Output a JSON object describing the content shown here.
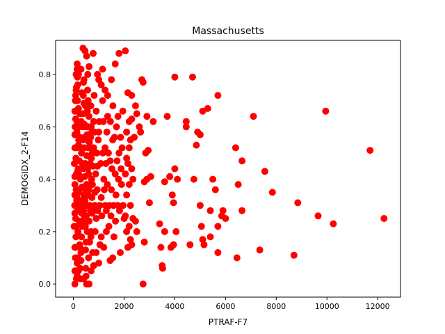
{
  "chart_data": {
    "type": "scatter",
    "title": "Massachusetts",
    "xlabel": "PTRAF-F7",
    "ylabel": "DEMOGIDX_2-F14",
    "xlim": [
      -700,
      12900
    ],
    "ylim": [
      -0.05,
      0.93
    ],
    "x_ticks": [
      {
        "value": 0,
        "label": "0"
      },
      {
        "value": 2000,
        "label": "2000"
      },
      {
        "value": 4000,
        "label": "4000"
      },
      {
        "value": 6000,
        "label": "6000"
      },
      {
        "value": 8000,
        "label": "8000"
      },
      {
        "value": 10000,
        "label": "10000"
      },
      {
        "value": 12000,
        "label": "12000"
      }
    ],
    "y_ticks": [
      {
        "value": 0.0,
        "label": "0.0"
      },
      {
        "value": 0.2,
        "label": "0.2"
      },
      {
        "value": 0.4,
        "label": "0.4"
      },
      {
        "value": 0.6,
        "label": "0.6"
      },
      {
        "value": 0.8,
        "label": "0.8"
      }
    ],
    "grid": false,
    "marker_color": "#ff0000",
    "points": [
      [
        60,
        0.0
      ],
      [
        120,
        0.02
      ],
      [
        200,
        0.05
      ],
      [
        150,
        0.08
      ],
      [
        80,
        0.1
      ],
      [
        300,
        0.12
      ],
      [
        250,
        0.15
      ],
      [
        100,
        0.18
      ],
      [
        180,
        0.2
      ],
      [
        350,
        0.22
      ],
      [
        90,
        0.25
      ],
      [
        400,
        0.28
      ],
      [
        220,
        0.3
      ],
      [
        130,
        0.32
      ],
      [
        500,
        0.35
      ],
      [
        60,
        0.38
      ],
      [
        280,
        0.4
      ],
      [
        170,
        0.43
      ],
      [
        450,
        0.45
      ],
      [
        100,
        0.48
      ],
      [
        320,
        0.5
      ],
      [
        200,
        0.53
      ],
      [
        550,
        0.55
      ],
      [
        140,
        0.58
      ],
      [
        380,
        0.6
      ],
      [
        90,
        0.63
      ],
      [
        260,
        0.65
      ],
      [
        480,
        0.68
      ],
      [
        160,
        0.7
      ],
      [
        340,
        0.73
      ],
      [
        120,
        0.75
      ],
      [
        420,
        0.78
      ],
      [
        200,
        0.8
      ],
      [
        300,
        0.82
      ],
      [
        150,
        0.84
      ],
      [
        380,
        0.9
      ],
      [
        460,
        0.89
      ],
      [
        520,
        0.87
      ],
      [
        620,
        0.83
      ],
      [
        780,
        0.88
      ],
      [
        40,
        0.46
      ],
      [
        50,
        0.3
      ],
      [
        30,
        0.22
      ],
      [
        70,
        0.6
      ],
      [
        80,
        0.7
      ],
      [
        110,
        0.74
      ],
      [
        160,
        0.79
      ],
      [
        600,
        0.42
      ],
      [
        650,
        0.3
      ],
      [
        700,
        0.2
      ],
      [
        750,
        0.5
      ],
      [
        800,
        0.62
      ],
      [
        850,
        0.35
      ],
      [
        900,
        0.25
      ],
      [
        950,
        0.45
      ],
      [
        1000,
        0.58
      ],
      [
        1050,
        0.15
      ],
      [
        1100,
        0.33
      ],
      [
        1150,
        0.7
      ],
      [
        1200,
        0.4
      ],
      [
        1250,
        0.52
      ],
      [
        1300,
        0.28
      ],
      [
        1350,
        0.64
      ],
      [
        1400,
        0.22
      ],
      [
        1450,
        0.47
      ],
      [
        1500,
        0.36
      ],
      [
        1550,
        0.55
      ],
      [
        1600,
        0.18
      ],
      [
        1650,
        0.42
      ],
      [
        1700,
        0.6
      ],
      [
        1750,
        0.3
      ],
      [
        1800,
        0.5
      ],
      [
        1850,
        0.12
      ],
      [
        1900,
        0.38
      ],
      [
        1950,
        0.66
      ],
      [
        2000,
        0.25
      ],
      [
        600,
        0.1
      ],
      [
        700,
        0.05
      ],
      [
        800,
        0.07
      ],
      [
        500,
        0.03
      ],
      [
        520,
        0.0
      ],
      [
        620,
        0.0
      ],
      [
        400,
        0.02
      ],
      [
        900,
        0.12
      ],
      [
        1000,
        0.08
      ],
      [
        1100,
        0.18
      ],
      [
        1200,
        0.14
      ],
      [
        1300,
        0.2
      ],
      [
        1450,
        0.09
      ],
      [
        1550,
        0.1
      ],
      [
        1000,
        0.78
      ],
      [
        1100,
        0.76
      ],
      [
        1150,
        0.82
      ],
      [
        950,
        0.8
      ],
      [
        1250,
        0.74
      ],
      [
        1350,
        0.72
      ],
      [
        1500,
        0.78
      ],
      [
        1650,
        0.84
      ],
      [
        1800,
        0.88
      ],
      [
        2050,
        0.89
      ],
      [
        2150,
        0.73
      ],
      [
        2300,
        0.72
      ],
      [
        2450,
        0.68
      ],
      [
        2500,
        0.65
      ],
      [
        2200,
        0.62
      ],
      [
        2300,
        0.63
      ],
      [
        2100,
        0.58
      ],
      [
        2250,
        0.55
      ],
      [
        2400,
        0.56
      ],
      [
        2200,
        0.52
      ],
      [
        2100,
        0.48
      ],
      [
        2300,
        0.44
      ],
      [
        2150,
        0.46
      ],
      [
        2050,
        0.42
      ],
      [
        2200,
        0.38
      ],
      [
        2350,
        0.4
      ],
      [
        2100,
        0.34
      ],
      [
        2250,
        0.3
      ],
      [
        2050,
        0.26
      ],
      [
        2200,
        0.22
      ],
      [
        2350,
        0.25
      ],
      [
        2100,
        0.2
      ],
      [
        2250,
        0.17
      ],
      [
        2150,
        0.14
      ],
      [
        2300,
        0.15
      ],
      [
        2450,
        0.24
      ],
      [
        2500,
        0.2
      ],
      [
        2600,
        0.6
      ],
      [
        2650,
        0.58
      ],
      [
        2700,
        0.78
      ],
      [
        2750,
        0.77
      ],
      [
        2900,
        0.64
      ],
      [
        2850,
        0.5
      ],
      [
        2950,
        0.51
      ],
      [
        2800,
        0.39
      ],
      [
        2900,
        0.4
      ],
      [
        3050,
        0.41
      ],
      [
        3000,
        0.31
      ],
      [
        3150,
        0.62
      ],
      [
        2800,
        0.16
      ],
      [
        2750,
        0.0
      ],
      [
        3400,
        0.23
      ],
      [
        3450,
        0.14
      ],
      [
        3500,
        0.07
      ],
      [
        3520,
        0.06
      ],
      [
        3600,
        0.2
      ],
      [
        3600,
        0.39
      ],
      [
        3700,
        0.64
      ],
      [
        3800,
        0.41
      ],
      [
        3900,
        0.34
      ],
      [
        3950,
        0.31
      ],
      [
        4000,
        0.44
      ],
      [
        3850,
        0.14
      ],
      [
        3950,
        0.15
      ],
      [
        4050,
        0.2
      ],
      [
        4100,
        0.4
      ],
      [
        4000,
        0.79
      ],
      [
        4450,
        0.62
      ],
      [
        4450,
        0.6
      ],
      [
        4700,
        0.79
      ],
      [
        4600,
        0.15
      ],
      [
        4750,
        0.4
      ],
      [
        4850,
        0.53
      ],
      [
        4900,
        0.58
      ],
      [
        5000,
        0.57
      ],
      [
        5000,
        0.3
      ],
      [
        5050,
        0.22
      ],
      [
        5100,
        0.17
      ],
      [
        5150,
        0.15
      ],
      [
        5100,
        0.66
      ],
      [
        5300,
        0.67
      ],
      [
        5400,
        0.18
      ],
      [
        5400,
        0.28
      ],
      [
        5500,
        0.4
      ],
      [
        5600,
        0.36
      ],
      [
        5700,
        0.72
      ],
      [
        5700,
        0.22
      ],
      [
        5700,
        0.12
      ],
      [
        5850,
        0.26
      ],
      [
        5900,
        0.28
      ],
      [
        6000,
        0.25
      ],
      [
        6400,
        0.52
      ],
      [
        6500,
        0.38
      ],
      [
        6650,
        0.47
      ],
      [
        6650,
        0.28
      ],
      [
        6450,
        0.1
      ],
      [
        7100,
        0.64
      ],
      [
        7350,
        0.13
      ],
      [
        7550,
        0.43
      ],
      [
        7850,
        0.35
      ],
      [
        8700,
        0.11
      ],
      [
        8850,
        0.31
      ],
      [
        9650,
        0.26
      ],
      [
        9950,
        0.66
      ],
      [
        10250,
        0.23
      ],
      [
        11700,
        0.51
      ],
      [
        12250,
        0.25
      ],
      [
        60,
        0.05
      ],
      [
        60,
        0.14
      ],
      [
        60,
        0.27
      ],
      [
        60,
        0.34
      ],
      [
        60,
        0.41
      ],
      [
        60,
        0.52
      ],
      [
        60,
        0.57
      ],
      [
        60,
        0.66
      ],
      [
        90,
        0.72
      ],
      [
        110,
        0.8
      ],
      [
        150,
        0.82
      ],
      [
        170,
        0.76
      ],
      [
        200,
        0.67
      ],
      [
        230,
        0.6
      ],
      [
        230,
        0.47
      ],
      [
        240,
        0.36
      ],
      [
        240,
        0.24
      ],
      [
        260,
        0.14
      ],
      [
        260,
        0.06
      ],
      [
        280,
        0.02
      ],
      [
        300,
        0.09
      ],
      [
        320,
        0.18
      ],
      [
        330,
        0.27
      ],
      [
        340,
        0.37
      ],
      [
        360,
        0.46
      ],
      [
        370,
        0.55
      ],
      [
        380,
        0.65
      ],
      [
        390,
        0.72
      ],
      [
        400,
        0.77
      ],
      [
        420,
        0.69
      ],
      [
        430,
        0.61
      ],
      [
        440,
        0.52
      ],
      [
        450,
        0.41
      ],
      [
        460,
        0.32
      ],
      [
        470,
        0.22
      ],
      [
        480,
        0.13
      ],
      [
        490,
        0.06
      ],
      [
        500,
        0.16
      ],
      [
        510,
        0.26
      ],
      [
        520,
        0.38
      ],
      [
        530,
        0.49
      ],
      [
        540,
        0.57
      ],
      [
        550,
        0.66
      ],
      [
        560,
        0.74
      ],
      [
        570,
        0.8
      ],
      [
        580,
        0.7
      ],
      [
        590,
        0.6
      ],
      [
        600,
        0.52
      ],
      [
        610,
        0.36
      ],
      [
        620,
        0.24
      ],
      [
        640,
        0.16
      ],
      [
        660,
        0.46
      ],
      [
        680,
        0.56
      ],
      [
        690,
        0.68
      ],
      [
        700,
        0.6
      ],
      [
        720,
        0.4
      ],
      [
        730,
        0.33
      ],
      [
        740,
        0.27
      ],
      [
        760,
        0.12
      ],
      [
        780,
        0.45
      ],
      [
        800,
        0.52
      ],
      [
        820,
        0.72
      ],
      [
        830,
        0.58
      ],
      [
        840,
        0.3
      ],
      [
        860,
        0.2
      ],
      [
        880,
        0.42
      ],
      [
        900,
        0.66
      ],
      [
        920,
        0.5
      ],
      [
        940,
        0.36
      ],
      [
        960,
        0.28
      ],
      [
        980,
        0.55
      ],
      [
        1020,
        0.62
      ],
      [
        1040,
        0.3
      ],
      [
        1080,
        0.46
      ],
      [
        1120,
        0.26
      ],
      [
        1160,
        0.5
      ],
      [
        1180,
        0.62
      ],
      [
        1220,
        0.36
      ],
      [
        1260,
        0.3
      ],
      [
        1280,
        0.46
      ],
      [
        1320,
        0.58
      ],
      [
        1340,
        0.38
      ],
      [
        1380,
        0.5
      ],
      [
        1420,
        0.3
      ],
      [
        1460,
        0.62
      ],
      [
        1480,
        0.26
      ],
      [
        1520,
        0.44
      ],
      [
        1560,
        0.68
      ],
      [
        1580,
        0.3
      ],
      [
        1620,
        0.56
      ],
      [
        1660,
        0.24
      ],
      [
        1680,
        0.34
      ],
      [
        1720,
        0.47
      ],
      [
        1760,
        0.64
      ],
      [
        1780,
        0.4
      ],
      [
        1820,
        0.28
      ],
      [
        1860,
        0.56
      ],
      [
        1880,
        0.44
      ],
      [
        1920,
        0.52
      ],
      [
        1960,
        0.3
      ],
      [
        120,
        0.42
      ],
      [
        140,
        0.33
      ],
      [
        170,
        0.28
      ],
      [
        190,
        0.44
      ],
      [
        210,
        0.55
      ],
      [
        150,
        0.62
      ],
      [
        130,
        0.52
      ],
      [
        110,
        0.36
      ],
      [
        100,
        0.22
      ],
      [
        90,
        0.14
      ],
      [
        150,
        0.03
      ],
      [
        180,
        0.1
      ],
      [
        200,
        0.35
      ],
      [
        210,
        0.42
      ],
      [
        270,
        0.56
      ],
      [
        290,
        0.3
      ],
      [
        310,
        0.62
      ],
      [
        330,
        0.52
      ],
      [
        350,
        0.32
      ],
      [
        370,
        0.24
      ],
      [
        390,
        0.44
      ],
      [
        410,
        0.34
      ],
      [
        430,
        0.26
      ],
      [
        450,
        0.56
      ],
      [
        470,
        0.46
      ],
      [
        490,
        0.36
      ],
      [
        510,
        0.6
      ],
      [
        530,
        0.3
      ],
      [
        550,
        0.2
      ],
      [
        570,
        0.44
      ],
      [
        590,
        0.34
      ],
      [
        610,
        0.64
      ],
      [
        630,
        0.54
      ],
      [
        650,
        0.38
      ],
      [
        670,
        0.28
      ],
      [
        690,
        0.18
      ],
      [
        710,
        0.48
      ],
      [
        730,
        0.58
      ],
      [
        750,
        0.38
      ],
      [
        770,
        0.28
      ]
    ]
  }
}
